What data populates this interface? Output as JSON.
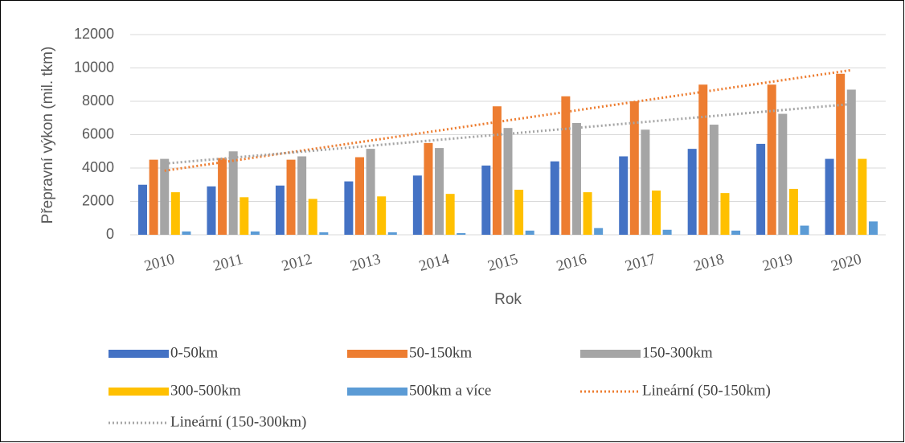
{
  "chart_data": {
    "type": "bar",
    "x_label": "Rok",
    "y_label": "Přepravní výkon (mil. tkm)",
    "categories": [
      "2010",
      "2011",
      "2012",
      "2013",
      "2014",
      "2015",
      "2016",
      "2017",
      "2018",
      "2019",
      "2020"
    ],
    "series": [
      {
        "name": "0-50km",
        "color": "#4472c4",
        "values": [
          3000,
          2900,
          2950,
          3200,
          3550,
          4150,
          4400,
          4700,
          5150,
          5450,
          4550
        ]
      },
      {
        "name": "50-150km",
        "color": "#ed7d31",
        "values": [
          4500,
          4600,
          4500,
          4650,
          5500,
          7700,
          8300,
          8000,
          9000,
          9000,
          9650
        ],
        "trendline": {
          "name": "Lineární (50-150km)"
        }
      },
      {
        "name": "150-300km",
        "color": "#a5a5a5",
        "values": [
          4550,
          5000,
          4700,
          5150,
          5200,
          6400,
          6700,
          6300,
          6600,
          7250,
          8700
        ],
        "trendline": {
          "name": "Lineární (150-300km)"
        }
      },
      {
        "name": "300-500km",
        "color": "#ffc000",
        "values": [
          2550,
          2250,
          2150,
          2300,
          2450,
          2700,
          2550,
          2650,
          2500,
          2750,
          4550
        ]
      },
      {
        "name": "500km a více",
        "color": "#5b9bd5",
        "values": [
          200,
          200,
          150,
          150,
          100,
          250,
          400,
          300,
          250,
          550,
          800
        ]
      }
    ],
    "ylim": [
      0,
      12000
    ],
    "yticks": [
      0,
      2000,
      4000,
      6000,
      8000,
      10000,
      12000
    ],
    "grid": true
  }
}
